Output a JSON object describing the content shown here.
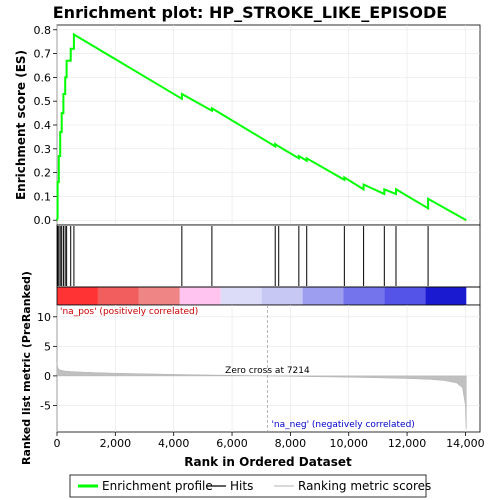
{
  "chart_data": {
    "type": "line",
    "title": "Enrichment plot: HP_STROKE_LIKE_EPISODE",
    "xlabel": "Rank in Ordered Dataset",
    "xlim": [
      0,
      14500
    ],
    "x_ticks": [
      0,
      2000,
      4000,
      6000,
      8000,
      10000,
      12000,
      14000
    ],
    "x_tick_labels": [
      "0",
      "2,000",
      "4,000",
      "6,000",
      "8,000",
      "10,000",
      "12,000",
      "14,000"
    ],
    "top_panel": {
      "ylabel": "Enrichment score (ES)",
      "ylim": [
        -0.02,
        0.82
      ],
      "y_ticks": [
        0.0,
        0.1,
        0.2,
        0.3,
        0.4,
        0.5,
        0.6,
        0.7,
        0.8
      ],
      "y_tick_labels": [
        "0.0",
        "0.1",
        "0.2",
        "0.3",
        "0.4",
        "0.5",
        "0.6",
        "0.7",
        "0.8"
      ],
      "series": [
        {
          "name": "Enrichment profile",
          "color": "#00ff00",
          "x": [
            0,
            20,
            20,
            60,
            60,
            110,
            110,
            160,
            160,
            220,
            220,
            280,
            280,
            330,
            330,
            470,
            470,
            580,
            580,
            4280,
            4280,
            5310,
            5310,
            7480,
            7480,
            7600,
            7600,
            8290,
            8290,
            8560,
            8560,
            9850,
            9850,
            10510,
            10510,
            11220,
            11220,
            11620,
            11620,
            12720,
            12720,
            14030
          ],
          "y": [
            0.0,
            0.01,
            0.16,
            0.16,
            0.27,
            0.27,
            0.37,
            0.37,
            0.45,
            0.45,
            0.53,
            0.53,
            0.6,
            0.6,
            0.67,
            0.67,
            0.72,
            0.72,
            0.78,
            0.51,
            0.53,
            0.46,
            0.47,
            0.31,
            0.32,
            0.31,
            0.31,
            0.26,
            0.27,
            0.25,
            0.26,
            0.17,
            0.18,
            0.13,
            0.15,
            0.11,
            0.13,
            0.11,
            0.13,
            0.05,
            0.09,
            0.0
          ]
        }
      ]
    },
    "hits": {
      "name": "Hits",
      "positions": [
        20,
        60,
        110,
        160,
        220,
        280,
        330,
        470,
        580,
        4280,
        5310,
        7480,
        7600,
        8290,
        8560,
        9850,
        10510,
        11220,
        11620,
        12720
      ]
    },
    "rank_bar": {
      "colors": [
        "#ff3333",
        "#f25d5d",
        "#f08585",
        "#ffc5f0",
        "#dcdcf8",
        "#c8c8f5",
        "#9e9ef0",
        "#7474ec",
        "#5454e8",
        "#1a1ad0"
      ]
    },
    "bottom_panel": {
      "ylabel": "Ranked list metric (PreRanked)",
      "ylim": [
        -9.5,
        12
      ],
      "y_ticks": [
        -5,
        0,
        5,
        10
      ],
      "y_tick_labels": [
        "-5",
        "0",
        "5",
        "10"
      ],
      "series_name": "Ranking metric scores",
      "fill_color": "#c0c0c0",
      "profile": {
        "x": [
          0,
          30,
          100,
          300,
          600,
          1000,
          2000,
          3000,
          4000,
          5000,
          6000,
          7214,
          8000,
          9000,
          10000,
          11000,
          12000,
          12800,
          13300,
          13700,
          13900,
          14000,
          14030
        ],
        "y": [
          2.2,
          1.3,
          1.0,
          0.8,
          0.7,
          0.6,
          0.45,
          0.35,
          0.25,
          0.17,
          0.1,
          0.0,
          -0.07,
          -0.15,
          -0.22,
          -0.32,
          -0.45,
          -0.6,
          -0.8,
          -1.2,
          -2.0,
          -5.0,
          -9.0
        ]
      },
      "zero_cross": 7214,
      "annotations": {
        "pos": "'na_pos' (positively correlated)",
        "neg": "'na_neg' (negatively correlated)",
        "zero": "Zero cross at 7214"
      },
      "annotation_colors": {
        "pos": "#cc0000",
        "neg": "#0000cc",
        "zero": "#000000"
      }
    },
    "legend": [
      {
        "label": "Enrichment profile",
        "color": "#00ff00",
        "kind": "thick-line"
      },
      {
        "label": "Hits",
        "color": "#000000",
        "kind": "line"
      },
      {
        "label": "Ranking metric scores",
        "color": "#c0c0c0",
        "kind": "line"
      }
    ]
  }
}
